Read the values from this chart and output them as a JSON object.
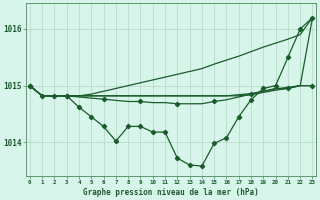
{
  "title": "Graphe pression niveau de la mer (hPa)",
  "bg_color": "#d8f5ec",
  "line_color": "#1a5c2a",
  "grid_color": "#b0d8c0",
  "ylim": [
    1013.4,
    1016.45
  ],
  "yticks": [
    1014,
    1015,
    1016
  ],
  "xlim": [
    -0.3,
    23.3
  ],
  "lines": [
    {
      "y": [
        1015.0,
        1014.82,
        1014.82,
        1014.82,
        1014.62,
        1014.45,
        1014.28,
        1014.02,
        1014.28,
        1014.28,
        1014.18,
        1014.18,
        1013.72,
        1013.6,
        1013.58,
        1013.98,
        1014.08,
        1014.45,
        1014.75,
        1014.95,
        1015.0,
        1015.5,
        1016.0,
        1016.2
      ],
      "markers": true,
      "marker_indices": [
        0,
        1,
        2,
        3,
        4,
        5,
        6,
        7,
        8,
        9,
        10,
        11,
        12,
        13,
        14,
        15,
        16,
        17,
        18,
        19,
        20,
        21,
        22,
        23
      ]
    },
    {
      "y": [
        1015.0,
        1014.82,
        1014.82,
        1014.82,
        1014.8,
        1014.78,
        1014.76,
        1014.74,
        1014.72,
        1014.72,
        1014.7,
        1014.7,
        1014.68,
        1014.68,
        1014.68,
        1014.72,
        1014.75,
        1014.8,
        1014.85,
        1014.9,
        1014.95,
        1014.95,
        1015.0,
        1015.0
      ],
      "markers": true,
      "marker_indices": [
        0,
        3,
        6,
        9,
        12,
        15,
        18,
        21,
        23
      ]
    },
    {
      "y": [
        1015.0,
        1014.82,
        1014.82,
        1014.82,
        1014.82,
        1014.82,
        1014.82,
        1014.82,
        1014.82,
        1014.82,
        1014.82,
        1014.82,
        1014.82,
        1014.82,
        1014.82,
        1014.82,
        1014.82,
        1014.82,
        1014.84,
        1014.88,
        1014.92,
        1014.95,
        1015.0,
        1015.0
      ],
      "markers": false,
      "marker_indices": []
    },
    {
      "y": [
        1015.0,
        1014.82,
        1014.82,
        1014.82,
        1014.82,
        1014.82,
        1014.82,
        1014.82,
        1014.82,
        1014.82,
        1014.82,
        1014.82,
        1014.82,
        1014.82,
        1014.82,
        1014.82,
        1014.82,
        1014.84,
        1014.86,
        1014.9,
        1014.94,
        1014.97,
        1015.0,
        1016.2
      ],
      "markers": false,
      "marker_indices": []
    },
    {
      "y": [
        1015.0,
        1014.82,
        1014.82,
        1014.82,
        1014.82,
        1014.85,
        1014.9,
        1014.95,
        1015.0,
        1015.05,
        1015.1,
        1015.15,
        1015.2,
        1015.25,
        1015.3,
        1015.38,
        1015.45,
        1015.52,
        1015.6,
        1015.68,
        1015.75,
        1015.82,
        1015.9,
        1016.2
      ],
      "markers": false,
      "marker_indices": []
    }
  ]
}
